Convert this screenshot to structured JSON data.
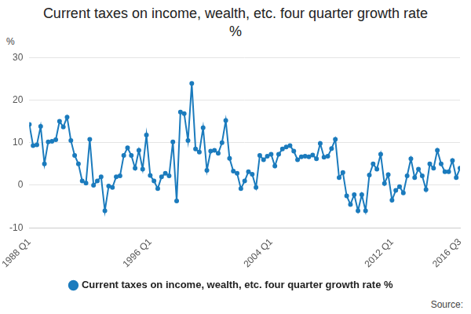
{
  "chart_data": {
    "type": "line",
    "title": "Current taxes on income, wealth, etc. four quarter growth rate %",
    "ylabel": "%",
    "source": "Source:",
    "categories": [
      "1988 Q1",
      null,
      null,
      null,
      null,
      null,
      null,
      null,
      null,
      null,
      null,
      null,
      null,
      null,
      null,
      null,
      null,
      null,
      null,
      null,
      null,
      null,
      null,
      null,
      null,
      null,
      null,
      null,
      null,
      null,
      null,
      null,
      "1996 Q1",
      null,
      null,
      null,
      null,
      null,
      null,
      null,
      null,
      null,
      null,
      null,
      null,
      null,
      null,
      null,
      null,
      null,
      null,
      null,
      null,
      null,
      null,
      null,
      null,
      null,
      null,
      null,
      null,
      null,
      null,
      null,
      "2004 Q1",
      null,
      null,
      null,
      null,
      null,
      null,
      null,
      null,
      null,
      null,
      null,
      null,
      null,
      null,
      null,
      null,
      null,
      null,
      null,
      null,
      null,
      null,
      null,
      null,
      null,
      null,
      null,
      null,
      null,
      null,
      null,
      "2012 Q1",
      null,
      null,
      null,
      null,
      null,
      null,
      null,
      null,
      null,
      null,
      null,
      null,
      null,
      null,
      null,
      null,
      null,
      "2016 Q3"
    ],
    "series": [
      {
        "name": "Current taxes on income, wealth, etc. four quarter growth rate %",
        "color": "#1b7bbd",
        "marker": "circle",
        "line_style": "solid",
        "values": [
          14.3,
          9.3,
          9.5,
          13.8,
          5,
          10.2,
          10.3,
          10.7,
          15,
          13.7,
          16,
          10.5,
          7,
          5,
          1,
          0.5,
          10.8,
          0,
          1,
          2,
          -6,
          -0.2,
          -0.5,
          2,
          2.2,
          7,
          8.8,
          7,
          4,
          8.2,
          3.8,
          11.8,
          2.3,
          1,
          -0.8,
          2,
          2.8,
          2.2,
          10.2,
          -3.7,
          17.2,
          16.8,
          10.5,
          23.9,
          8.5,
          7.8,
          13.5,
          3.5,
          8,
          8.2,
          7.5,
          10,
          15.2,
          6.3,
          3.3,
          2.8,
          -0.8,
          1,
          3.2,
          2.6,
          -0.5,
          7,
          6,
          6.8,
          7.3,
          4.5,
          7.3,
          8.5,
          9,
          9.3,
          8,
          6,
          6.7,
          6.8,
          6.7,
          7.1,
          6.2,
          9.8,
          6.6,
          6.8,
          8.6,
          10.8,
          1.8,
          3,
          -2.5,
          -4.5,
          -2.2,
          -6,
          -2.2,
          -6,
          2.4,
          5,
          3.8,
          7.3,
          0.4,
          2.5,
          -3.5,
          -1.2,
          -0.3,
          -1.8,
          2.2,
          6.2,
          1.8,
          3.8,
          2.2,
          -1,
          5,
          4,
          8.2,
          5,
          3.2,
          3.2,
          5.8,
          1.8,
          4
        ]
      }
    ],
    "ylim": [
      -10,
      30
    ],
    "yticks": [
      -10,
      0,
      10,
      20,
      30
    ],
    "grid": true,
    "legend": "bottom"
  }
}
